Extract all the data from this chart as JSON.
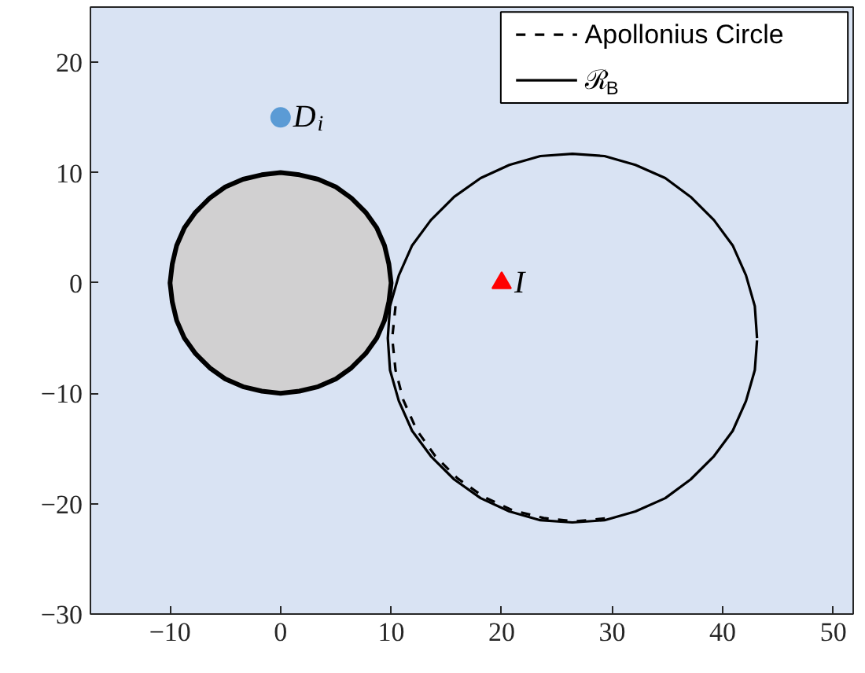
{
  "chart_data": {
    "type": "line",
    "xlim": [
      -17.2,
      51.8
    ],
    "ylim": [
      -30,
      25
    ],
    "xticks": [
      -10,
      0,
      10,
      20,
      30,
      40,
      50
    ],
    "yticks": [
      -30,
      -20,
      -10,
      0,
      10,
      20
    ],
    "grid": false,
    "legend": "top right",
    "series": [
      {
        "name": "Apollonius Circle",
        "line_style": "dashed",
        "color": "#000000",
        "x": [
          10.4,
          10.1,
          10.4,
          11.1,
          12.3,
          14.0,
          16.0,
          18.4,
          21.0,
          23.8,
          26.7,
          29.6
        ],
        "values": [
          -2.1,
          -5,
          -7.9,
          -10.6,
          -13.3,
          -15.7,
          -17.7,
          -19.4,
          -20.6,
          -21.3,
          -21.6,
          -21.3
        ]
      },
      {
        "name": "ℛ$_{B}$",
        "line_style": "solid",
        "color": "#000000",
        "x": [
          43.1,
          42.9,
          42.1,
          40.9,
          39.2,
          37.1,
          34.8,
          32.1,
          29.3,
          26.4,
          23.5,
          20.7,
          18.1,
          15.7,
          13.6,
          11.9,
          10.7,
          9.9,
          9.7,
          9.9,
          10.7,
          11.9,
          13.6,
          15.7,
          18.1,
          20.7,
          23.5,
          26.4,
          29.3,
          32.1,
          34.8,
          37.1,
          39.2,
          40.9,
          42.1,
          42.9,
          43.1
        ],
        "values": [
          -5,
          -2.1,
          0.7,
          3.4,
          5.7,
          7.8,
          9.5,
          10.7,
          11.5,
          11.7,
          11.5,
          10.7,
          9.5,
          7.8,
          5.7,
          3.4,
          0.7,
          -2.1,
          -5,
          -7.9,
          -10.7,
          -13.4,
          -15.7,
          -17.8,
          -19.5,
          -20.7,
          -21.5,
          -21.7,
          -21.5,
          -20.7,
          -19.5,
          -17.8,
          -15.7,
          -13.4,
          -10.7,
          -7.9,
          -5.2
        ]
      },
      {
        "type": "area",
        "color": "#d1d0d1",
        "x": [
          10,
          9.8,
          9.4,
          8.7,
          7.7,
          6.4,
          5,
          3.4,
          1.7,
          0,
          -1.7,
          -3.4,
          -5,
          -6.4,
          -7.7,
          -8.7,
          -9.4,
          -9.8,
          -10,
          -9.8,
          -9.4,
          -8.7,
          -7.7,
          -6.4,
          -5,
          -3.4,
          -1.7,
          0,
          1.7,
          3.4,
          5,
          6.4,
          7.7,
          8.7,
          9.4,
          9.8,
          10
        ],
        "values": [
          0,
          1.7,
          3.4,
          5,
          6.4,
          7.7,
          8.7,
          9.4,
          9.8,
          10,
          9.8,
          9.4,
          8.7,
          7.7,
          6.4,
          5,
          3.4,
          1.7,
          0,
          -1.7,
          -3.4,
          -5,
          -6.4,
          -7.7,
          -8.7,
          -9.4,
          -9.8,
          -10,
          -9.8,
          -9.4,
          -8.7,
          -7.7,
          -6.4,
          -5,
          -3.4,
          -1.7,
          0
        ]
      },
      {
        "name": "D$_{i}$",
        "type": "scatter",
        "marker": "circle",
        "color": "#5b9bd5",
        "x": [
          0
        ],
        "values": [
          15
        ]
      },
      {
        "name": "I",
        "type": "scatter",
        "marker": "triangle",
        "color": "#ff0000",
        "x": [
          20
        ],
        "values": [
          0
        ]
      }
    ]
  }
}
